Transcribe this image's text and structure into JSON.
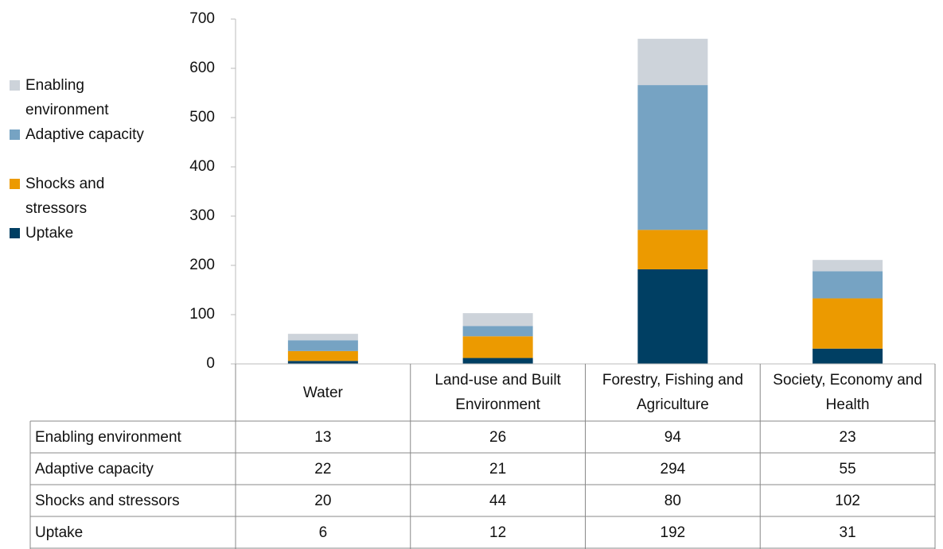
{
  "chart_data": {
    "type": "stacked_bar",
    "categories": [
      "Water",
      "Land-use and Built Environment",
      "Forestry, Fishing and Agriculture",
      "Society, Economy and Health"
    ],
    "series": [
      {
        "name": "Enabling environment",
        "color": "#cdd3da",
        "values": [
          13,
          26,
          94,
          23
        ]
      },
      {
        "name": "Adaptive capacity",
        "color": "#76a3c3",
        "values": [
          22,
          21,
          294,
          55
        ]
      },
      {
        "name": "Shocks and stressors",
        "color": "#ec9a00",
        "values": [
          20,
          44,
          80,
          102
        ]
      },
      {
        "name": "Uptake",
        "color": "#003f63",
        "values": [
          6,
          12,
          192,
          31
        ]
      }
    ],
    "ylim": [
      0,
      700
    ],
    "yticks": [
      0,
      100,
      200,
      300,
      400,
      500,
      600,
      700
    ],
    "grid": false,
    "legend": "left"
  }
}
